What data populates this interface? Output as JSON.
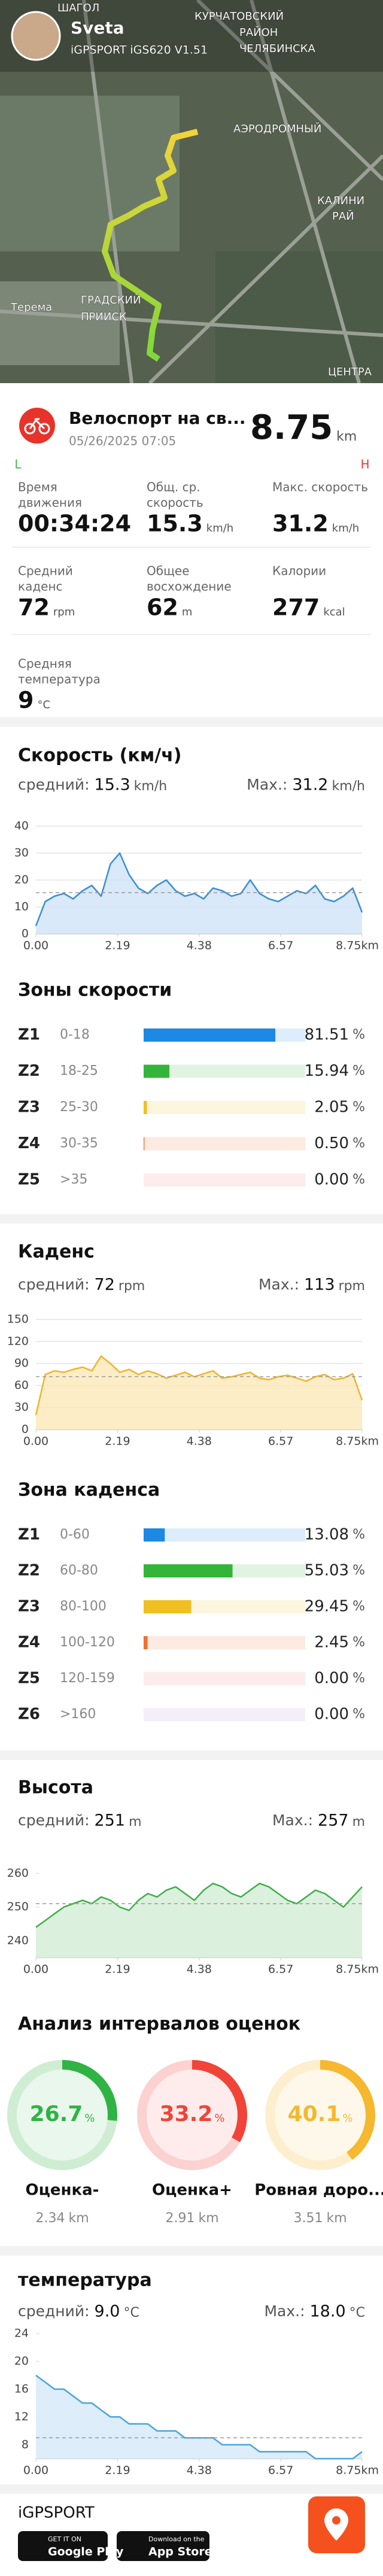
{
  "header": {
    "user": "Sveta",
    "device": "iGPSPORT iGS620 V1.51",
    "map_labels": [
      {
        "text": "ШАГОЛ"
      },
      {
        "text": "КУРЧАТОВСКИЙ"
      },
      {
        "text": "РАЙОН"
      },
      {
        "text": "ЧЕЛЯБИНСКА"
      },
      {
        "text": "АЭРОДРОМНЫЙ"
      },
      {
        "text": "КАЛИНИ"
      },
      {
        "text": "РАЙ"
      },
      {
        "text": "Терема"
      },
      {
        "text": "ГРАДСКИЙ"
      },
      {
        "text": "ПРИИСК"
      },
      {
        "text": "ЦЕНТРА"
      }
    ]
  },
  "activity": {
    "title": "Велоспорт на св...",
    "date": "05/26/2025 07:05",
    "distance": 8.75,
    "distance_unit": "km",
    "low": "L",
    "high": "H"
  },
  "stats": [
    {
      "label": [
        "Время",
        "движения"
      ],
      "value": "00:34:24"
    },
    {
      "label": [
        "Общ. ср.",
        "скорость"
      ],
      "value": 15.3,
      "unit": "km/h"
    },
    {
      "label": [
        "Макс. скорость"
      ],
      "value": 31.2,
      "unit": "km/h"
    },
    {
      "label": [
        "Средний",
        "каденс"
      ],
      "value": 72,
      "unit": "rpm"
    },
    {
      "label": [
        "Общее",
        "восхождение"
      ],
      "value": 62,
      "unit": "m"
    },
    {
      "label": [
        "Калории"
      ],
      "value": 277,
      "unit": "kcal"
    },
    {
      "label": [
        "Средняя",
        "температура"
      ],
      "value": 9,
      "unit": "°C"
    }
  ],
  "charts": [
    {
      "title": "Скорость (км/ч)",
      "avg_label": "средний:",
      "avg": 15.3,
      "max_label": "Max.:",
      "max": 31.2,
      "unit": "km/h",
      "color": "#3a8fd8",
      "fill": "#cfe4f7",
      "grid": true,
      "x": [
        0,
        0.25,
        0.5,
        0.75,
        1,
        1.25,
        1.5,
        1.75,
        2,
        2.25,
        2.5,
        2.75,
        3,
        3.25,
        3.5,
        3.75,
        4,
        4.25,
        4.5,
        4.75,
        5,
        5.25,
        5.5,
        5.75,
        6,
        6.25,
        6.5,
        6.75,
        7,
        7.25,
        7.5,
        7.75,
        8,
        8.25,
        8.5,
        8.75
      ],
      "values": [
        3,
        12,
        14,
        15,
        13,
        16,
        18,
        14,
        26,
        30,
        22,
        17,
        15,
        18,
        20,
        16,
        14,
        15,
        13,
        17,
        16,
        14,
        15,
        20,
        15,
        13,
        12,
        14,
        16,
        15,
        18,
        13,
        12,
        14,
        17,
        8
      ],
      "xlim": [
        0,
        8.75
      ],
      "xticks": [
        {
          "value": 0,
          "label": "0.00"
        },
        2.19,
        4.38,
        6.57,
        {
          "value": 8.75,
          "label": "8.75km"
        }
      ],
      "ylim": [
        0,
        40
      ],
      "yticks": [
        0,
        10,
        20,
        30,
        40
      ]
    },
    {
      "title": "Каденс",
      "avg_label": "средний:",
      "avg": 72,
      "max_label": "Max.:",
      "max": 113,
      "unit": "rpm",
      "color": "#f0b429",
      "fill": "#fbe8b8",
      "grid": true,
      "x": [
        0,
        0.25,
        0.5,
        0.75,
        1,
        1.25,
        1.5,
        1.75,
        2,
        2.25,
        2.5,
        2.75,
        3,
        3.25,
        3.5,
        3.75,
        4,
        4.25,
        4.5,
        4.75,
        5,
        5.25,
        5.5,
        5.75,
        6,
        6.25,
        6.5,
        6.75,
        7,
        7.25,
        7.5,
        7.75,
        8,
        8.25,
        8.5,
        8.75
      ],
      "values": [
        20,
        75,
        80,
        78,
        82,
        85,
        80,
        100,
        90,
        78,
        82,
        75,
        80,
        76,
        70,
        74,
        78,
        72,
        76,
        80,
        70,
        72,
        75,
        78,
        70,
        68,
        72,
        74,
        70,
        66,
        72,
        75,
        68,
        70,
        76,
        40
      ],
      "xlim": [
        0,
        8.75
      ],
      "xticks": [
        {
          "value": 0,
          "label": "0.00"
        },
        2.19,
        4.38,
        6.57,
        {
          "value": 8.75,
          "label": "8.75km"
        }
      ],
      "ylim": [
        0,
        150
      ],
      "yticks": [
        0,
        30,
        60,
        90,
        120,
        150
      ]
    },
    {
      "title": "Высота",
      "avg_label": "средний:",
      "avg": 251,
      "max_label": "Max.:",
      "max": 257,
      "unit": "m",
      "color": "#3fae49",
      "fill": "#d3eed5",
      "grid": false,
      "x": [
        0,
        0.25,
        0.5,
        0.75,
        1,
        1.25,
        1.5,
        1.75,
        2,
        2.25,
        2.5,
        2.75,
        3,
        3.25,
        3.5,
        3.75,
        4,
        4.25,
        4.5,
        4.75,
        5,
        5.25,
        5.5,
        5.75,
        6,
        6.25,
        6.5,
        6.75,
        7,
        7.25,
        7.5,
        7.75,
        8,
        8.25,
        8.5,
        8.75
      ],
      "values": [
        244,
        246,
        248,
        250,
        251,
        252,
        251,
        253,
        252,
        250,
        249,
        252,
        254,
        253,
        255,
        256,
        254,
        252,
        255,
        257,
        256,
        254,
        253,
        255,
        257,
        256,
        254,
        252,
        251,
        253,
        255,
        254,
        252,
        250,
        253,
        256
      ],
      "xlim": [
        0,
        8.75
      ],
      "xticks": [
        {
          "value": 0,
          "label": "0.00"
        },
        2.19,
        4.38,
        6.57,
        {
          "value": 8.75,
          "label": "8.75km"
        }
      ],
      "ylim": [
        235,
        262
      ],
      "yticks": [
        240,
        250,
        260
      ]
    },
    {
      "title": "температура",
      "avg_label": "средний:",
      "avg": 9,
      "avg_text": "9.0",
      "max_label": "Max.:",
      "max": 18,
      "max_text": "18.0",
      "unit": "°C",
      "color": "#4aa3df",
      "fill": "#d4e9f7",
      "grid": false,
      "x": [
        0,
        0.25,
        0.5,
        0.75,
        1,
        1.25,
        1.5,
        1.75,
        2,
        2.25,
        2.5,
        2.75,
        3,
        3.25,
        3.5,
        3.75,
        4,
        4.25,
        4.5,
        4.75,
        5,
        5.25,
        5.5,
        5.75,
        6,
        6.25,
        6.5,
        6.75,
        7,
        7.25,
        7.5,
        7.75,
        8,
        8.25,
        8.5,
        8.75
      ],
      "values": [
        18,
        17,
        16,
        16,
        15,
        14,
        14,
        13,
        12,
        12,
        11,
        11,
        11,
        10,
        10,
        10,
        9,
        9,
        9,
        9,
        8,
        8,
        8,
        8,
        7,
        7,
        7,
        7,
        7,
        7,
        6,
        6,
        6,
        6,
        6,
        7
      ],
      "xlim": [
        0,
        8.75
      ],
      "xticks": [
        {
          "value": 0,
          "label": "0.00"
        },
        2.19,
        4.38,
        6.57,
        {
          "value": 8.75,
          "label": "8.75km"
        }
      ],
      "ylim": [
        6,
        24
      ],
      "yticks": [
        8,
        12,
        16,
        20,
        24
      ]
    }
  ],
  "speed_zones": {
    "title": "Зоны скорости",
    "unit": "%",
    "zones": [
      {
        "name": "Z1",
        "range": "0-18",
        "value": 81.51,
        "label": "81.51",
        "color": "#1e88e5"
      },
      {
        "name": "Z2",
        "range": "18-25",
        "value": 15.94,
        "label": "15.94",
        "color": "#34b53a"
      },
      {
        "name": "Z3",
        "range": "25-30",
        "value": 2.05,
        "label": "2.05",
        "color": "#f0c020"
      },
      {
        "name": "Z4",
        "range": "30-35",
        "value": 0.5,
        "label": "0.50",
        "color": "#f07030"
      },
      {
        "name": "Z5",
        "range": ">35",
        "value": 0,
        "label": "0.00",
        "color": "#f08080"
      }
    ]
  },
  "cadence_zones": {
    "title": "Зона каденса",
    "unit": "%",
    "zones": [
      {
        "name": "Z1",
        "range": "0-60",
        "value": 13.08,
        "label": "13.08",
        "color": "#1e88e5"
      },
      {
        "name": "Z2",
        "range": "60-80",
        "value": 55.03,
        "label": "55.03",
        "color": "#34b53a"
      },
      {
        "name": "Z3",
        "range": "80-100",
        "value": 29.45,
        "label": "29.45",
        "color": "#f0c020"
      },
      {
        "name": "Z4",
        "range": "100-120",
        "value": 2.45,
        "label": "2.45",
        "color": "#f07030"
      },
      {
        "name": "Z5",
        "range": "120-159",
        "value": 0,
        "label": "0.00",
        "color": "#f08080"
      },
      {
        "name": "Z6",
        "range": ">160",
        "value": 0,
        "label": "0.00",
        "color": "#b48ce0"
      }
    ]
  },
  "intervals": {
    "title": "Анализ интервалов оценок",
    "unit": "%",
    "items": [
      {
        "name": "Оценка-",
        "value": 26.7,
        "distance": 2.34,
        "distance_unit": "km",
        "color": "#2fb344"
      },
      {
        "name": "Оценка+",
        "value": 33.2,
        "distance": 2.91,
        "distance_unit": "km",
        "color": "#f04438"
      },
      {
        "name": "Ровная доро...",
        "value": 40.1,
        "distance": 3.51,
        "distance_unit": "km",
        "color": "#f5b82e"
      }
    ]
  },
  "footer": {
    "brand": "iGPSPORT",
    "badges": [
      [
        "GET IT ON",
        "Google Play"
      ],
      [
        "Download on the",
        "App Store"
      ]
    ]
  }
}
